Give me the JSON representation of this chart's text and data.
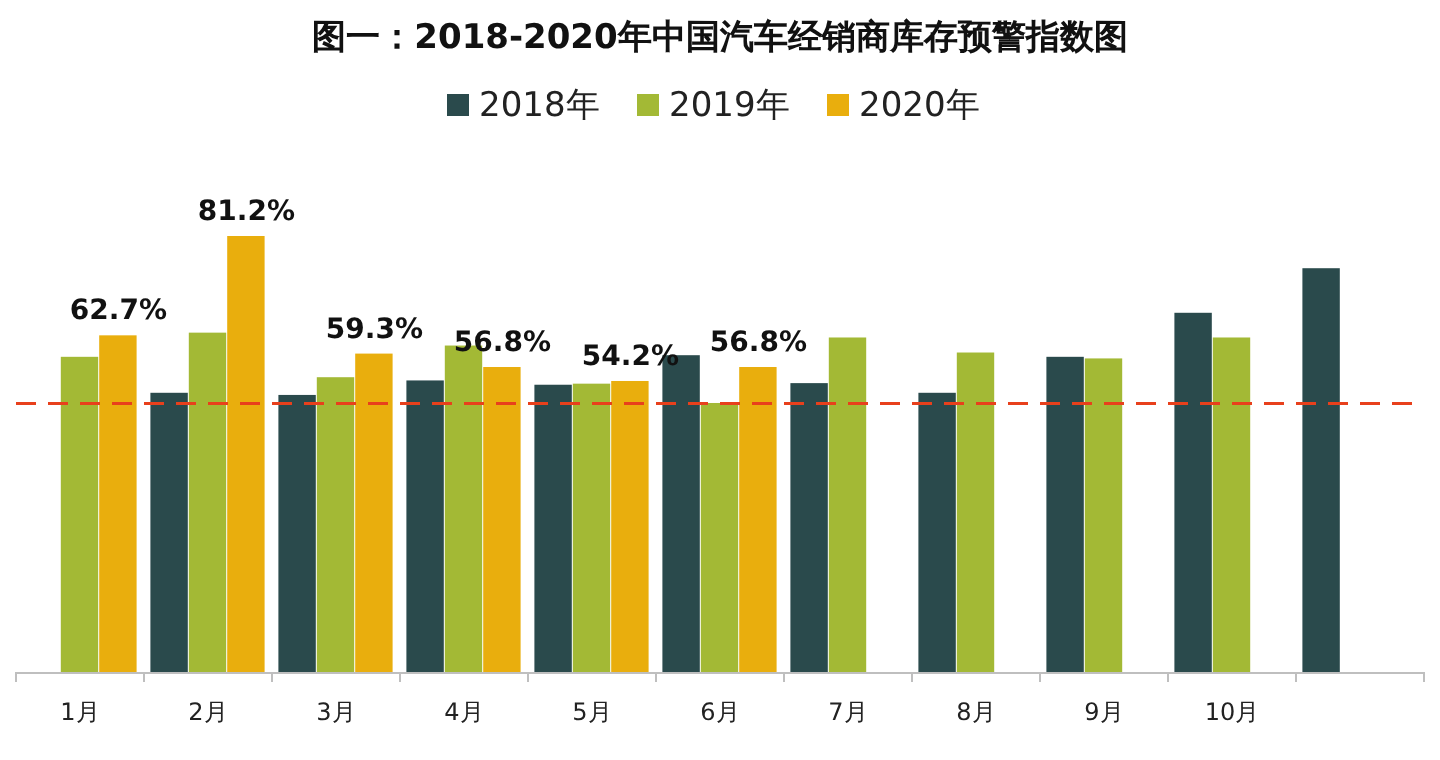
{
  "chart_data": {
    "type": "bar",
    "title": "图一：2018-2020年中国汽车经销商库存预警指数图",
    "categories": [
      "1月",
      "2月",
      "3月",
      "4月",
      "5月",
      "6月",
      "7月",
      "8月",
      "9月",
      "10月",
      null
    ],
    "series": [
      {
        "name": "2018年",
        "color": "#2a4a4c",
        "values": [
          null,
          52.0,
          51.6,
          54.3,
          53.5,
          59.0,
          53.8,
          52.0,
          58.7,
          66.9,
          75.2
        ]
      },
      {
        "name": "2019年",
        "color": "#a3b935",
        "values": [
          58.7,
          63.2,
          54.9,
          60.8,
          53.7,
          50.1,
          62.3,
          59.5,
          58.4,
          62.3,
          null
        ]
      },
      {
        "name": "2020年",
        "color": "#e9ae0d",
        "values": [
          62.7,
          81.2,
          59.3,
          56.8,
          54.2,
          56.8,
          null,
          null,
          null,
          null,
          null
        ],
        "value_labels": [
          "62.7%",
          "81.2%",
          "59.3%",
          "56.8%",
          "54.2%",
          "56.8%",
          null,
          null,
          null,
          null,
          null
        ]
      }
    ],
    "ref_lines": [
      {
        "axis": "y",
        "value": 50,
        "color": "#e8401c",
        "line_style": "dashed"
      }
    ],
    "legend": "top"
  }
}
